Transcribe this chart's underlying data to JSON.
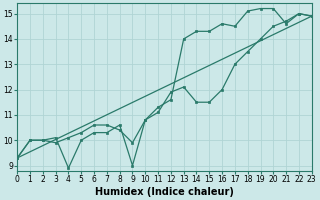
{
  "xlabel": "Humidex (Indice chaleur)",
  "bg_color": "#cce8e8",
  "grid_color": "#b0d4d4",
  "line_color": "#2a7a6a",
  "spine_color": "#2a7a6a",
  "xlim": [
    0,
    23
  ],
  "ylim": [
    8.8,
    15.4
  ],
  "xticks": [
    0,
    1,
    2,
    3,
    4,
    5,
    6,
    7,
    8,
    9,
    10,
    11,
    12,
    13,
    14,
    15,
    16,
    17,
    18,
    19,
    20,
    21,
    22,
    23
  ],
  "yticks": [
    9,
    10,
    11,
    12,
    13,
    14,
    15
  ],
  "line1_x": [
    0,
    1,
    2,
    3,
    4,
    5,
    6,
    7,
    8,
    9,
    10,
    11,
    12,
    13,
    14,
    15,
    16,
    17,
    18,
    19,
    20,
    21,
    22,
    23
  ],
  "line1_y": [
    9.3,
    10.0,
    10.0,
    9.9,
    10.1,
    10.3,
    10.6,
    10.6,
    10.4,
    9.9,
    10.8,
    11.3,
    11.6,
    14.0,
    14.3,
    14.3,
    14.6,
    14.5,
    15.1,
    15.2,
    15.2,
    14.6,
    15.0,
    14.9
  ],
  "line2_x": [
    0,
    1,
    2,
    3,
    4,
    5,
    6,
    7,
    8,
    9,
    10,
    11,
    12,
    13,
    14,
    15,
    16,
    17,
    18,
    19,
    20,
    21,
    22,
    23
  ],
  "line2_y": [
    9.3,
    10.0,
    10.0,
    10.1,
    8.9,
    10.0,
    10.3,
    10.3,
    10.6,
    9.0,
    10.8,
    11.1,
    11.9,
    12.1,
    11.5,
    11.5,
    12.0,
    13.0,
    13.5,
    14.0,
    14.5,
    14.7,
    15.0,
    14.9
  ],
  "line3_x": [
    0,
    23
  ],
  "line3_y": [
    9.3,
    14.9
  ],
  "xlabel_fontsize": 7,
  "tick_fontsize": 5.5
}
